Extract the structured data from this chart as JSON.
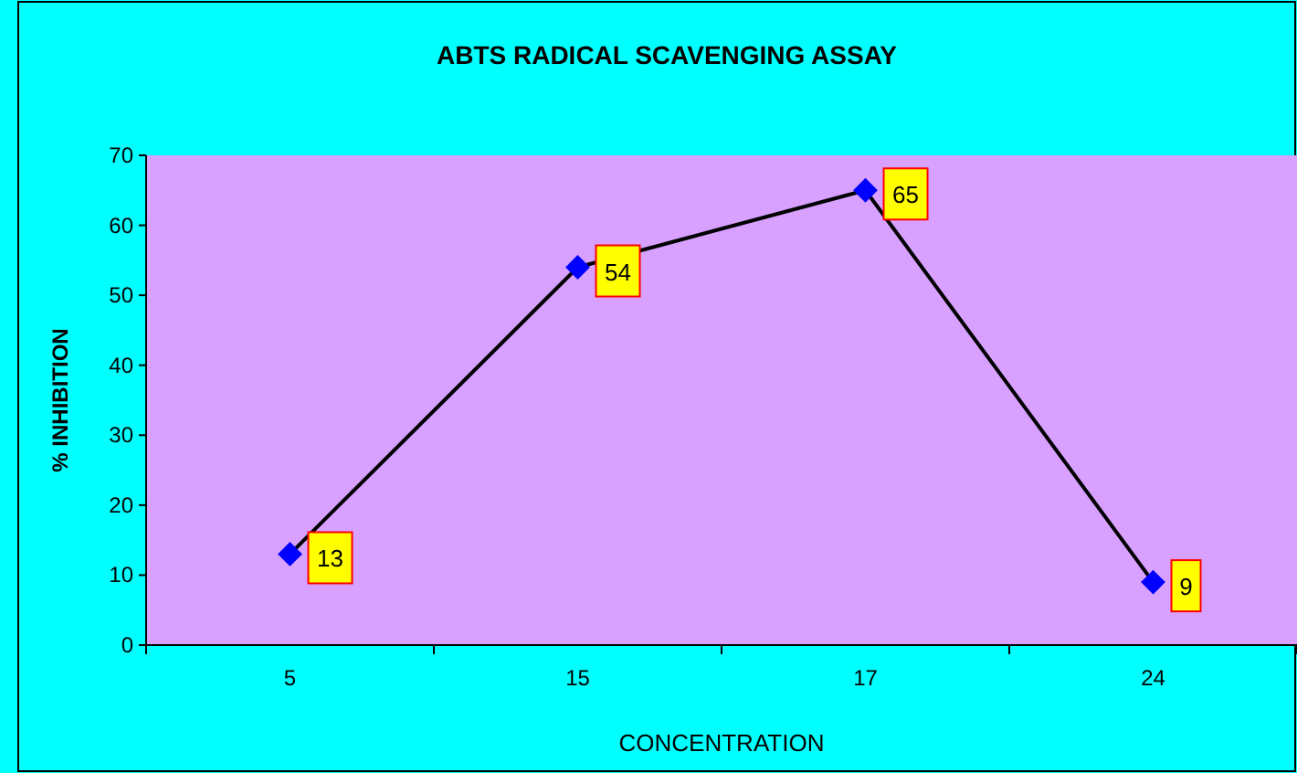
{
  "chart_data": {
    "type": "line",
    "title": "ABTS RADICAL SCAVENGING ASSAY",
    "xlabel": "CONCENTRATION",
    "ylabel": "% INHIBITION",
    "categories": [
      "5",
      "15",
      "17",
      "24"
    ],
    "series": [
      {
        "color": "#0000ff",
        "values": [
          13,
          54,
          65,
          9
        ]
      }
    ],
    "ylim": [
      0,
      70
    ],
    "yticks": [
      0,
      10,
      20,
      30,
      40,
      50,
      60,
      70
    ],
    "grid": false,
    "marker": "diamond",
    "line_style": "solid",
    "data_labels": true
  }
}
